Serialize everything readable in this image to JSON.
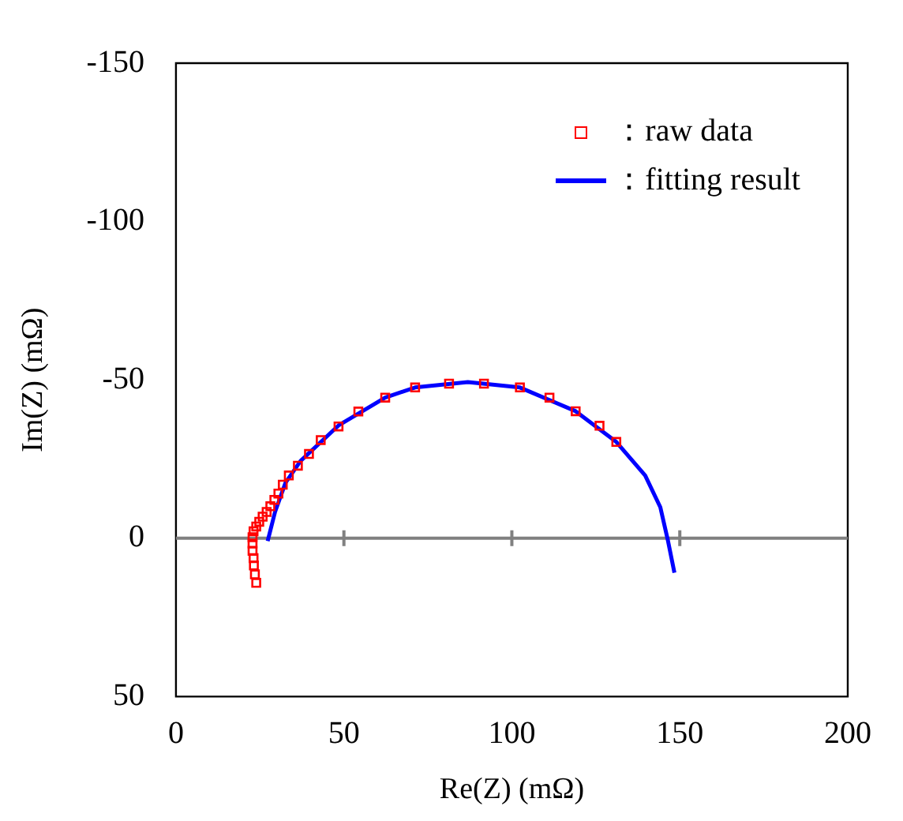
{
  "chart_data": {
    "type": "scatter",
    "xlabel": "Re(Z) (mΩ)",
    "ylabel": "Im(Z) (mΩ)",
    "xlim": [
      0,
      200
    ],
    "xticks": [
      0,
      50,
      100,
      150,
      200
    ],
    "ylim": [
      50,
      -150
    ],
    "yticks": [
      -150,
      -100,
      -50,
      0,
      50
    ],
    "grid": false,
    "legend": "top right",
    "ref_lines": [
      {
        "axis": "y",
        "value": 0,
        "color": "#808080"
      }
    ],
    "series": [
      {
        "name": "：raw data",
        "type": "scatter",
        "marker": "square",
        "color": "#ff0000",
        "x": [
          23.9,
          23.5,
          23.2,
          23.1,
          22.8,
          22.8,
          22.8,
          23.1,
          23.9,
          24.8,
          25.8,
          27,
          28.1,
          29.3,
          30.5,
          31.8,
          33.6,
          36.3,
          39.6,
          43.1,
          48.4,
          54.3,
          62.3,
          71.2,
          81.3,
          91.7,
          102.4,
          111.2,
          119,
          126.1,
          131.1
        ],
        "values": [
          14.1,
          11.4,
          8.6,
          6.3,
          4,
          1.7,
          -0.3,
          -2.2,
          -3.7,
          -5.2,
          -6.8,
          -8.3,
          -10.1,
          -12.1,
          -14.1,
          -16.9,
          -19.8,
          -22.9,
          -26.6,
          -31,
          -35.3,
          -40,
          -44.4,
          -47.6,
          -48.8,
          -48.8,
          -47.6,
          -44.4,
          -40.1,
          -35.5,
          -30.4
        ]
      },
      {
        "name": "：fitting result",
        "type": "line",
        "marker": "none",
        "line_style": "solid",
        "color": "#0000ff",
        "x": [
          27.3,
          29.5,
          32.6,
          37.1,
          48.4,
          62.3,
          71.2,
          86.9,
          102.4,
          119,
          131.1,
          139.7,
          144.2,
          146.5,
          148.4
        ],
        "values": [
          0.9,
          -8.3,
          -17.5,
          -24.4,
          -35.6,
          -44.4,
          -47.6,
          -49.3,
          -47.6,
          -40.1,
          -30.4,
          -19.8,
          -9.8,
          0.9,
          10.9
        ]
      }
    ]
  }
}
